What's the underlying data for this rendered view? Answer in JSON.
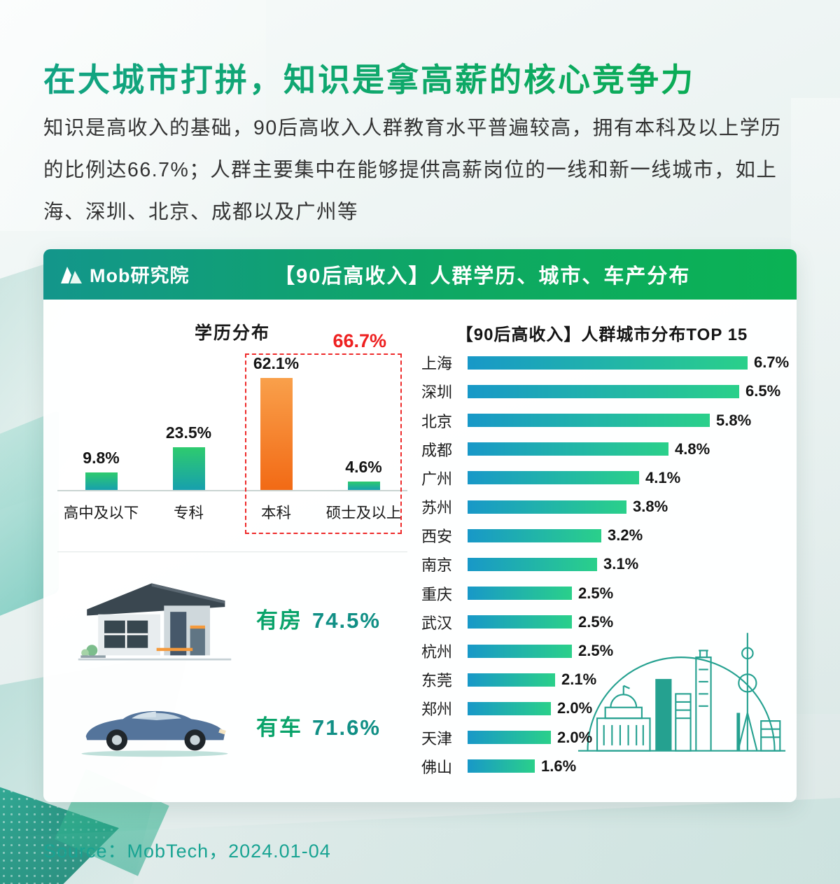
{
  "page": {
    "title": "在大城市打拼，知识是拿高薪的核心竞争力",
    "paragraph": "知识是高收入的基础，90后高收入人群教育水平普遍较高，拥有本科及以上学历的比例达66.7%；人群主要集中在能够提供高薪岗位的一线和新一线城市，如上海、深圳、北京、成都以及广州等",
    "source": "Source：MobTech，2024.01-04"
  },
  "card": {
    "brand": "Mob研究院",
    "header_title": "【90后高收入】人群学历、城市、车产分布"
  },
  "chart_data": [
    {
      "type": "bar",
      "title": "学历分布",
      "categories": [
        "高中及以下",
        "专科",
        "本科",
        "硕士及以上"
      ],
      "values": [
        9.8,
        23.5,
        62.1,
        4.6
      ],
      "unit": "%",
      "ylim": [
        0,
        70
      ],
      "grid": false,
      "legend": false,
      "highlight_bar": "本科",
      "highlight_bar_index": 2,
      "highlight": {
        "combined_label": "66.7%",
        "covers": [
          "本科",
          "硕士及以上"
        ]
      }
    },
    {
      "type": "bar",
      "orientation": "horizontal",
      "title": "【90后高收入】人群城市分布TOP 15",
      "categories": [
        "上海",
        "深圳",
        "北京",
        "成都",
        "广州",
        "苏州",
        "西安",
        "南京",
        "重庆",
        "武汉",
        "杭州",
        "东莞",
        "郑州",
        "天津",
        "佛山"
      ],
      "values": [
        6.7,
        6.5,
        5.8,
        4.8,
        4.1,
        3.8,
        3.2,
        3.1,
        2.5,
        2.5,
        2.5,
        2.1,
        2.0,
        2.0,
        1.6
      ],
      "unit": "%",
      "xlim": [
        0,
        7
      ],
      "grid": false,
      "legend": false
    }
  ],
  "assets": {
    "house": {
      "label": "有房",
      "value": "74.5%"
    },
    "car": {
      "label": "有车",
      "value": "71.6%"
    }
  },
  "icons": {
    "mob_logo": "white-geometric-mountain-mark",
    "house": "modern-house-illustration",
    "car": "blue-sports-car-illustration",
    "skyline": "teal-city-skyline-outline"
  },
  "colors": {
    "title_gradient": [
      "#12a383",
      "#09ad4e"
    ],
    "header_gradient": [
      "#13968b",
      "#0bb254"
    ],
    "edu_bar_gradient": [
      "#2ecb6e",
      "#17a0ad"
    ],
    "edu_bar_highlight": [
      "#f9a04b",
      "#f26a15"
    ],
    "city_bar_gradient": [
      "#1898c8",
      "#2ad08a"
    ],
    "highlight_red": "#ee2020",
    "asset_text_green": "#0aa36a",
    "source_teal": "#18a392"
  }
}
